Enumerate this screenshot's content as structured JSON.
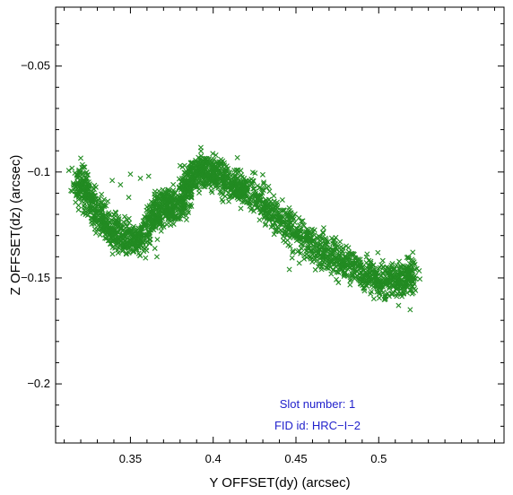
{
  "chart_data": {
    "type": "scatter",
    "xlabel": "Y OFFSET(dy) (arcsec)",
    "ylabel": "Z OFFSET(dz) (arcsec)",
    "xlim": [
      0.3048,
      0.5757
    ],
    "ylim": [
      -0.2279,
      -0.0222
    ],
    "x_ticks": [
      0.35,
      0.4,
      0.45,
      0.5
    ],
    "x_tick_labels": [
      "0.35",
      "0.4",
      "0.45",
      "0.5"
    ],
    "y_ticks": [
      -0.05,
      -0.1,
      -0.15,
      -0.2
    ],
    "y_tick_labels": [
      "−0.05",
      "−0.1",
      "−0.15",
      "−0.2"
    ],
    "marker": "x",
    "series": [
      {
        "color": "#228B22",
        "path": [
          [
            0.318,
            -0.103
          ],
          [
            0.322,
            -0.108
          ],
          [
            0.328,
            -0.118
          ],
          [
            0.335,
            -0.125
          ],
          [
            0.342,
            -0.13
          ],
          [
            0.35,
            -0.132
          ],
          [
            0.358,
            -0.131
          ],
          [
            0.365,
            -0.12
          ],
          [
            0.37,
            -0.115
          ],
          [
            0.376,
            -0.118
          ],
          [
            0.382,
            -0.112
          ],
          [
            0.386,
            -0.103
          ],
          [
            0.391,
            -0.1
          ],
          [
            0.397,
            -0.099
          ],
          [
            0.403,
            -0.101
          ],
          [
            0.41,
            -0.105
          ],
          [
            0.418,
            -0.108
          ],
          [
            0.428,
            -0.112
          ],
          [
            0.438,
            -0.12
          ],
          [
            0.448,
            -0.127
          ],
          [
            0.458,
            -0.133
          ],
          [
            0.468,
            -0.138
          ],
          [
            0.478,
            -0.142
          ],
          [
            0.488,
            -0.146
          ],
          [
            0.498,
            -0.15
          ],
          [
            0.508,
            -0.152
          ],
          [
            0.516,
            -0.151
          ],
          [
            0.521,
            -0.148
          ]
        ],
        "points_per_segment": 95,
        "spread": [
          0.0024,
          0.0042
        ],
        "extra_points": [
          [
            0.35,
            -0.101
          ],
          [
            0.339,
            -0.104
          ],
          [
            0.344,
            -0.106
          ],
          [
            0.349,
            -0.112
          ],
          [
            0.361,
            -0.102
          ],
          [
            0.366,
            -0.14
          ],
          [
            0.452,
            -0.143
          ],
          [
            0.446,
            -0.146
          ],
          [
            0.459,
            -0.141
          ],
          [
            0.415,
            -0.099
          ],
          [
            0.321,
            -0.101
          ],
          [
            0.519,
            -0.165
          ],
          [
            0.512,
            -0.163
          ],
          [
            0.504,
            -0.16
          ],
          [
            0.392,
            -0.094
          ],
          [
            0.38,
            -0.097
          ],
          [
            0.356,
            -0.103
          ],
          [
            0.372,
            -0.111
          ],
          [
            0.43,
            -0.114
          ],
          [
            0.44,
            -0.123
          ]
        ]
      }
    ],
    "annotations": [
      {
        "text": "Slot number: 1",
        "x": 0.463,
        "y": -0.2113,
        "color": "#2222cc"
      },
      {
        "text": "FID id: HRC−I−2",
        "x": 0.463,
        "y": -0.2215,
        "color": "#2222cc"
      }
    ],
    "grid": false
  }
}
